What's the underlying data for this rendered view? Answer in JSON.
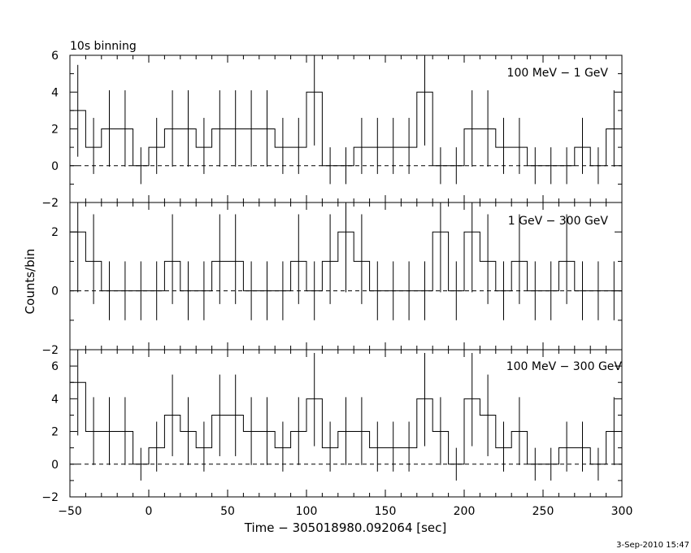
{
  "figure": {
    "title": "10s binning",
    "xlabel": "Time − 305018980.092064 [sec]",
    "ylabel": "Counts/bin",
    "timestamp": "3-Sep-2010 15:47"
  },
  "chart_data": [
    {
      "type": "step",
      "label": "100 MeV − 1 GeV",
      "xlim": [
        -50,
        300
      ],
      "ylim": [
        -2,
        6
      ],
      "yticks": [
        -2,
        0,
        2,
        4,
        6
      ],
      "ytick_labels": [
        "−2",
        "0",
        "2",
        "4",
        "6"
      ],
      "bin_width": 10,
      "x_start": -50,
      "values": [
        3,
        1,
        2,
        2,
        0,
        1,
        2,
        2,
        1,
        2,
        2,
        2,
        2,
        1,
        1,
        4,
        0,
        0,
        1,
        1,
        1,
        1,
        4,
        0,
        0,
        2,
        2,
        1,
        1,
        0,
        0,
        0,
        1,
        0,
        2,
        1
      ],
      "baseline": 0
    },
    {
      "type": "step",
      "label": "1 GeV − 300 GeV",
      "xlim": [
        -50,
        300
      ],
      "ylim": [
        -2,
        3
      ],
      "yticks": [
        -2,
        0,
        2
      ],
      "ytick_labels": [
        "−2",
        "0",
        "2"
      ],
      "bin_width": 10,
      "x_start": -50,
      "values": [
        2,
        1,
        0,
        0,
        0,
        0,
        1,
        0,
        0,
        1,
        1,
        0,
        0,
        0,
        1,
        0,
        1,
        2,
        1,
        0,
        0,
        0,
        0,
        2,
        0,
        2,
        1,
        0,
        1,
        0,
        0,
        1,
        0,
        0,
        0,
        0
      ],
      "baseline": 0
    },
    {
      "type": "step",
      "label": "100 MeV − 300 GeV",
      "xlim": [
        -50,
        300
      ],
      "ylim": [
        -2,
        7
      ],
      "yticks": [
        -2,
        0,
        2,
        4,
        6
      ],
      "ytick_labels": [
        "−2",
        "0",
        "2",
        "4",
        "6"
      ],
      "bin_width": 10,
      "x_start": -50,
      "values": [
        5,
        2,
        2,
        2,
        0,
        1,
        3,
        2,
        1,
        3,
        3,
        2,
        2,
        1,
        2,
        4,
        1,
        2,
        2,
        1,
        1,
        1,
        4,
        2,
        0,
        4,
        3,
        1,
        2,
        0,
        0,
        1,
        1,
        0,
        2,
        1
      ],
      "baseline": 0
    }
  ],
  "xaxis": {
    "ticks": [
      -50,
      0,
      50,
      100,
      150,
      200,
      250,
      300
    ],
    "tick_labels": [
      "−50",
      "0",
      "50",
      "100",
      "150",
      "200",
      "250",
      "300"
    ]
  }
}
